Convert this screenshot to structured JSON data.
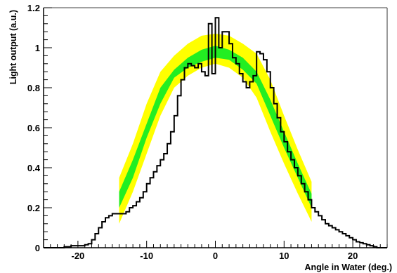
{
  "chart_data": {
    "type": "line",
    "title": "",
    "xlabel": "Angle in Water (deg.)",
    "ylabel": "Light output (a.u.)",
    "xlim": [
      -25,
      25
    ],
    "ylim": [
      0,
      1.2
    ],
    "x_ticks": [
      -20,
      -10,
      0,
      10,
      20
    ],
    "x_tick_labels": [
      "-20",
      "-10",
      "0",
      "10",
      "20"
    ],
    "y_ticks": [
      0,
      0.2,
      0.4,
      0.6,
      0.8,
      1,
      1.2
    ],
    "y_tick_labels": [
      "0",
      "0.2",
      "0.4",
      "0.6",
      "0.8",
      "1",
      "1.2"
    ],
    "grid": false,
    "legend": "none",
    "colors": {
      "outer_band": "#ffff00",
      "inner_band": "#22ee22",
      "histogram": "#000000"
    },
    "band_x": [
      -14,
      -12,
      -10,
      -8,
      -6,
      -4,
      -2,
      0,
      2,
      4,
      6,
      8,
      10,
      12,
      14
    ],
    "outer_band": {
      "lower": [
        0.12,
        0.28,
        0.47,
        0.66,
        0.8,
        0.86,
        0.9,
        0.92,
        0.9,
        0.85,
        0.75,
        0.58,
        0.42,
        0.27,
        0.13
      ],
      "upper": [
        0.35,
        0.52,
        0.72,
        0.88,
        0.96,
        1.02,
        1.06,
        1.07,
        1.06,
        1.02,
        0.97,
        0.84,
        0.66,
        0.49,
        0.33
      ]
    },
    "inner_band": {
      "lower": [
        0.2,
        0.35,
        0.55,
        0.72,
        0.85,
        0.9,
        0.93,
        0.95,
        0.94,
        0.89,
        0.82,
        0.66,
        0.5,
        0.35,
        0.2
      ],
      "upper": [
        0.28,
        0.44,
        0.62,
        0.8,
        0.89,
        0.95,
        0.99,
        1.01,
        0.99,
        0.95,
        0.88,
        0.74,
        0.58,
        0.42,
        0.27
      ]
    },
    "histogram": {
      "bin_width": 0.5,
      "bin_start": -25,
      "counts": [
        0,
        0,
        0,
        0,
        0,
        0,
        0.005,
        0.005,
        0.01,
        0.01,
        0.01,
        0.01,
        0.015,
        0.02,
        0.04,
        0.07,
        0.1,
        0.13,
        0.15,
        0.16,
        0.17,
        0.17,
        0.17,
        0.17,
        0.18,
        0.2,
        0.21,
        0.23,
        0.25,
        0.28,
        0.32,
        0.35,
        0.38,
        0.41,
        0.44,
        0.47,
        0.52,
        0.58,
        0.66,
        0.76,
        0.84,
        0.9,
        0.92,
        0.91,
        0.9,
        0.92,
        0.88,
        0.86,
        0.9,
        0.87,
        0.96,
        1.0,
        1.07,
        1.08,
        1.02,
        0.95,
        0.92,
        0.87,
        0.83,
        0.8,
        0.83,
        0.86,
        0.98,
        0.97,
        0.94,
        0.88,
        0.8,
        0.72,
        0.65,
        0.58,
        0.53,
        0.48,
        0.44,
        0.4,
        0.36,
        0.32,
        0.28,
        0.24,
        0.2,
        0.18,
        0.16,
        0.14,
        0.12,
        0.11,
        0.1,
        0.09,
        0.08,
        0.07,
        0.06,
        0.05,
        0.04,
        0.03,
        0.025,
        0.02,
        0.015,
        0.01,
        0.005,
        0,
        0,
        0
      ],
      "peaks": [
        {
          "x": 0,
          "y": 1.15
        },
        {
          "x": -1,
          "y": 1.12
        },
        {
          "x": 1,
          "y": 1.08
        }
      ]
    }
  }
}
